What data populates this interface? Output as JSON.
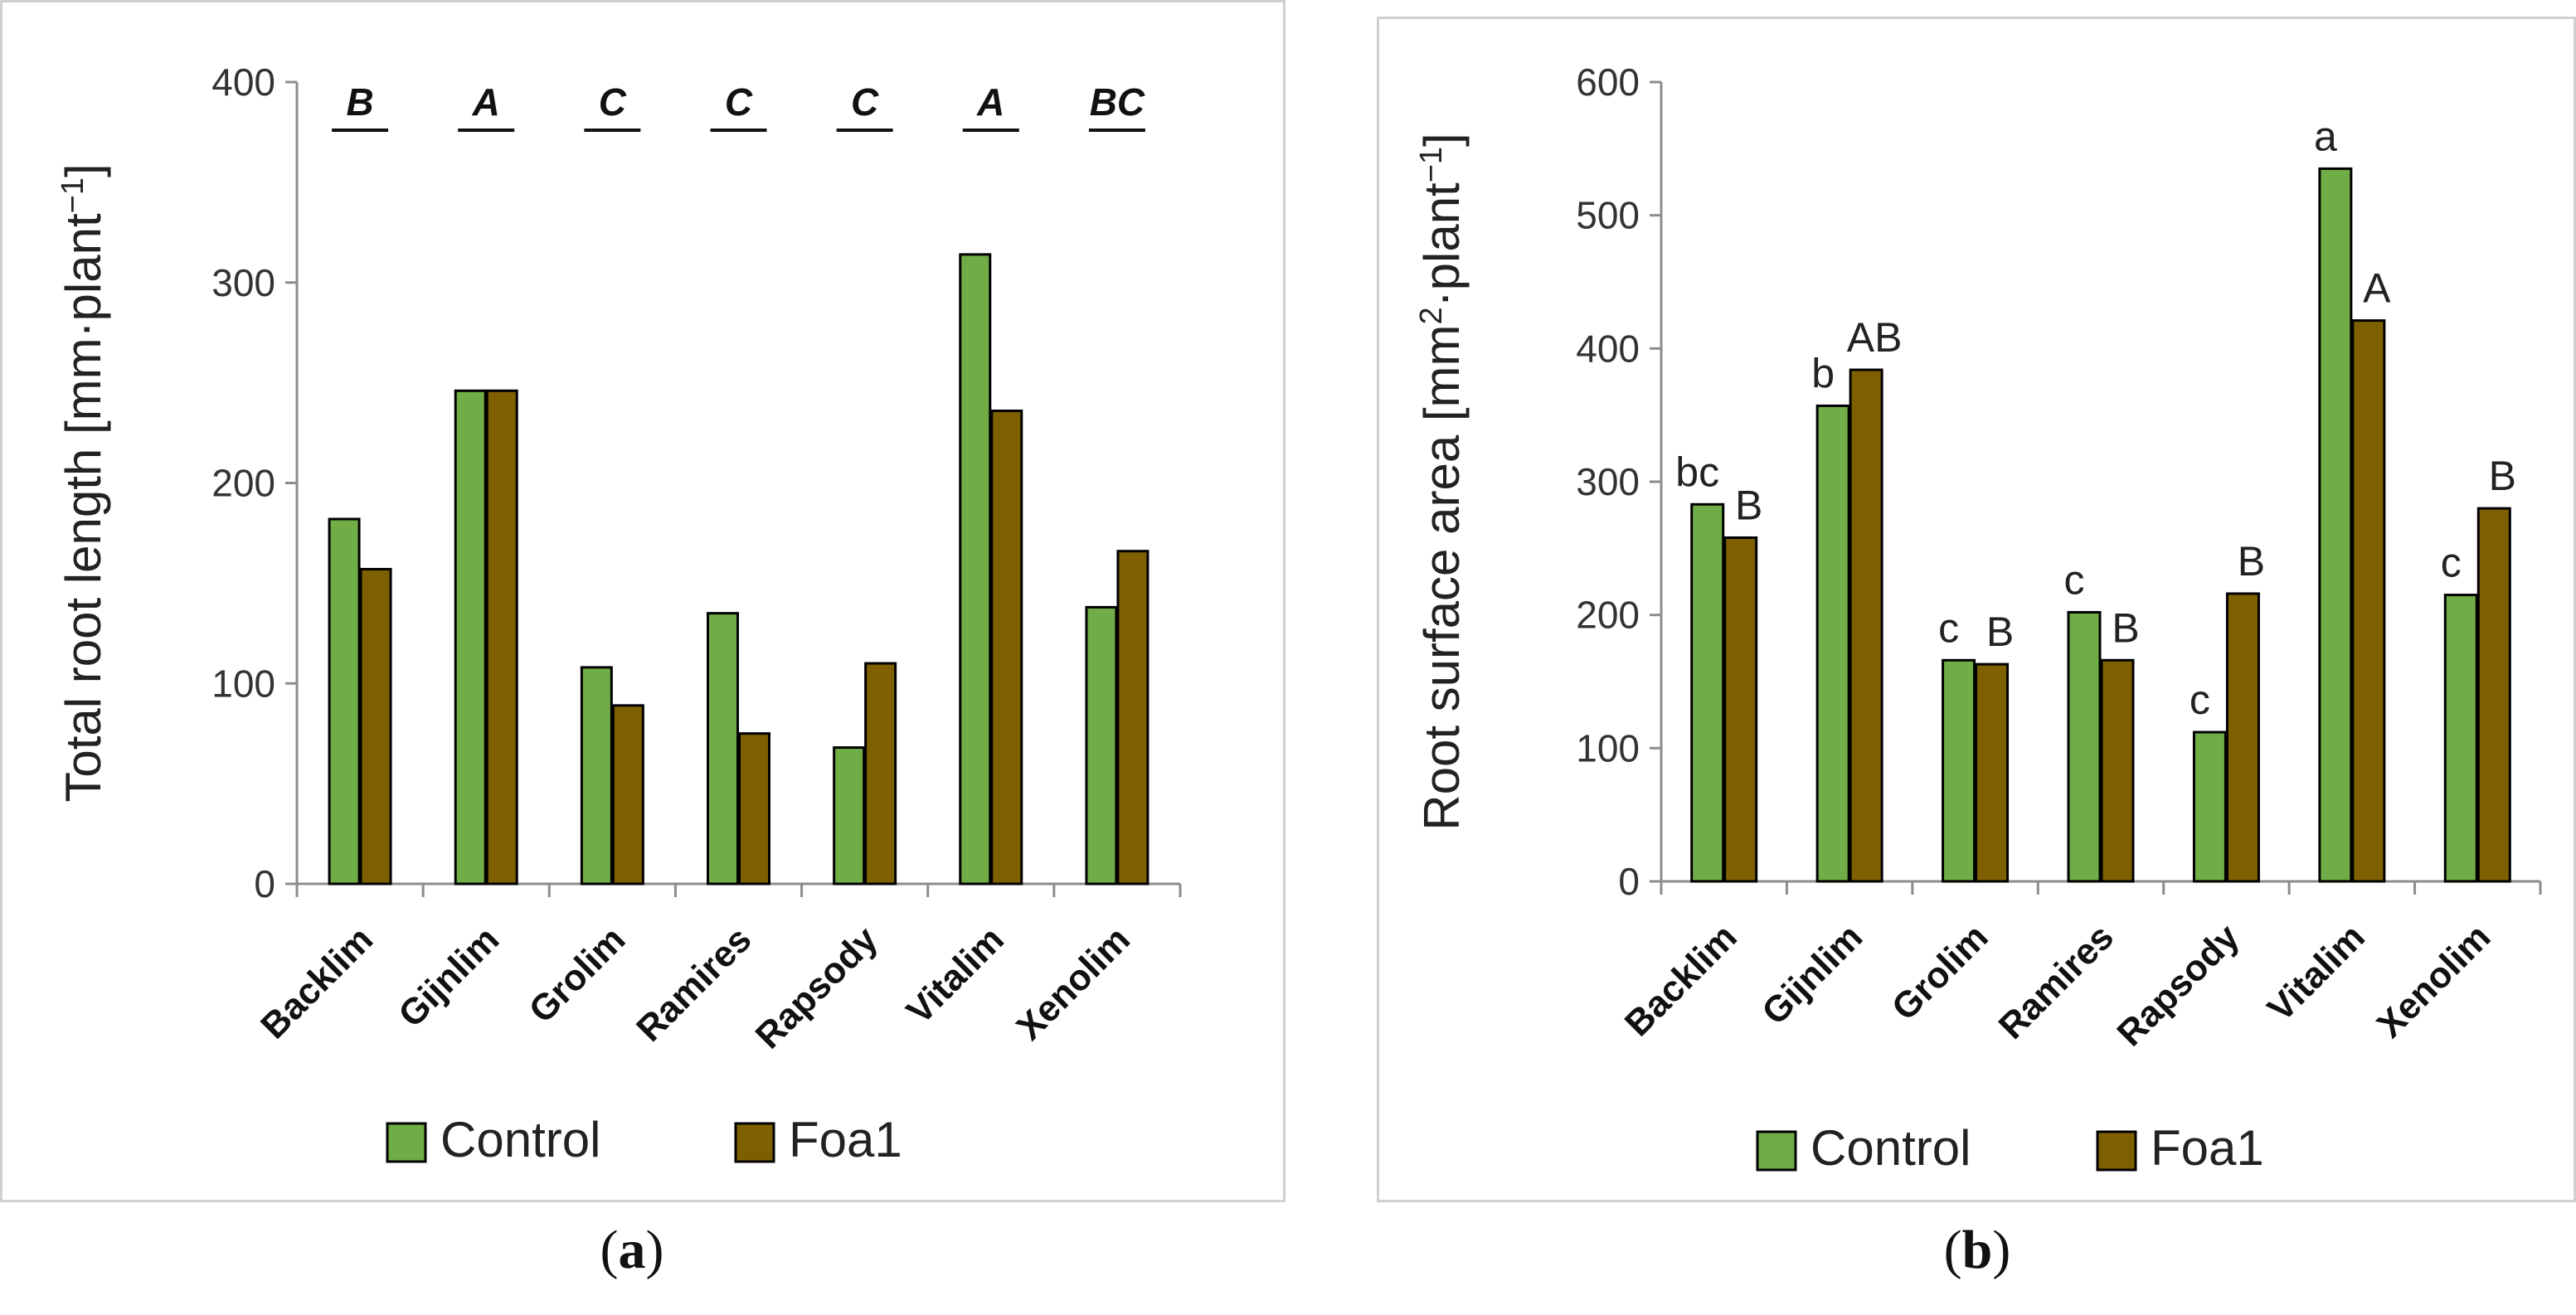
{
  "chart_data": [
    {
      "type": "bar",
      "title": "",
      "xlabel": "",
      "ylabel": "Total root length [mm·plant⁻¹]",
      "ylim": [
        0,
        400
      ],
      "yticks": [
        0,
        100,
        200,
        300,
        400
      ],
      "categories": [
        "Backlim",
        "Gijnlim",
        "Grolim",
        "Ramires",
        "Rapsody",
        "Vitalim",
        "Xenolim"
      ],
      "series": [
        {
          "name": "Control",
          "color": "#70ad47",
          "values": [
            182,
            246,
            108,
            135,
            68,
            314,
            138
          ]
        },
        {
          "name": "Foa1",
          "color": "#7f6000",
          "values": [
            157,
            246,
            89,
            75,
            110,
            236,
            166
          ]
        }
      ],
      "group_letters": [
        "B",
        "A",
        "C",
        "C",
        "C",
        "A",
        "BC"
      ],
      "legend": "bottom",
      "caption": "a"
    },
    {
      "type": "bar",
      "title": "",
      "xlabel": "",
      "ylabel": "Root surface area [mm²·plant⁻¹]",
      "ylim": [
        0,
        600
      ],
      "yticks": [
        0,
        100,
        200,
        300,
        400,
        500,
        600
      ],
      "categories": [
        "Backlim",
        "Gijnlim",
        "Grolim",
        "Ramires",
        "Rapsody",
        "Vitalim",
        "Xenolim"
      ],
      "series": [
        {
          "name": "Control",
          "color": "#70ad47",
          "values": [
            283,
            357,
            166,
            202,
            112,
            535,
            215
          ],
          "letters": [
            "bc",
            "b",
            "c",
            "c",
            "c",
            "a",
            "c"
          ]
        },
        {
          "name": "Foa1",
          "color": "#7f6000",
          "values": [
            258,
            384,
            163,
            166,
            216,
            421,
            280
          ],
          "letters": [
            "B",
            "AB",
            "B",
            "B",
            "B",
            "A",
            "B"
          ]
        }
      ],
      "legend": "bottom",
      "caption": "b"
    }
  ]
}
